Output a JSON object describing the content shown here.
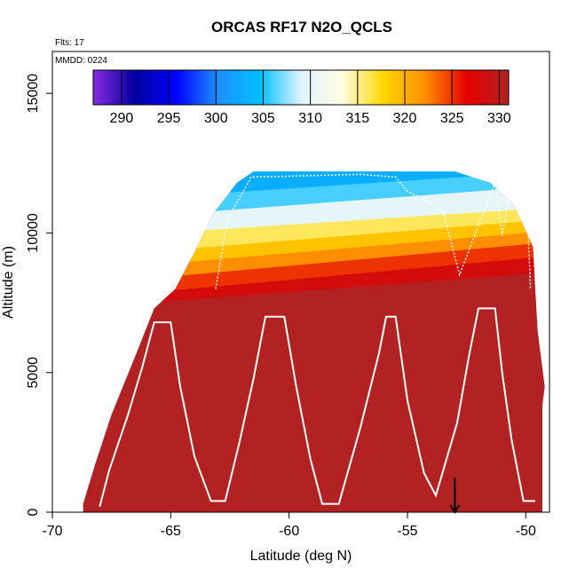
{
  "chart_data": {
    "type": "heatmap",
    "title": "ORCAS RF17 N2O_QCLS",
    "subtitle_flights": "Flts: 17",
    "subtitle_date": "MMDD: 0224",
    "xlabel": "Latitude (deg N)",
    "ylabel": "Altitude (m)",
    "xlim": [
      -70,
      -49
    ],
    "ylim": [
      0,
      16500
    ],
    "xticks": [
      -70,
      -65,
      -60,
      -55,
      -50
    ],
    "yticks": [
      0,
      5000,
      10000,
      15000
    ],
    "colorbar": {
      "min": 287,
      "max": 331,
      "ticks": [
        290,
        295,
        300,
        305,
        310,
        315,
        320,
        325,
        330
      ],
      "placement": "top-inside",
      "colors": [
        "#8a2be2",
        "#0000a0",
        "#0000ff",
        "#1e90ff",
        "#00bfff",
        "#dff3ff",
        "#fffde0",
        "#ffd700",
        "#ff8c00",
        "#e60000",
        "#b22222"
      ]
    },
    "domain_profile": [
      [
        -68.7,
        300
      ],
      [
        -68.2,
        1700
      ],
      [
        -67.5,
        3500
      ],
      [
        -66.4,
        5800
      ],
      [
        -65.7,
        7300
      ],
      [
        -64.8,
        8000
      ],
      [
        -64.0,
        9300
      ],
      [
        -63.2,
        10700
      ],
      [
        -62.2,
        11800
      ],
      [
        -61.5,
        12200
      ],
      [
        -53.9,
        12200
      ],
      [
        -53.0,
        12200
      ],
      [
        -51.5,
        11800
      ],
      [
        -50.5,
        11000
      ],
      [
        -49.7,
        9500
      ],
      [
        -49.5,
        6500
      ],
      [
        -49.2,
        4500
      ],
      [
        -49.3,
        3800
      ]
    ],
    "layers": [
      {
        "base_left": 11000,
        "base_right": 12300,
        "value": 303
      },
      {
        "base_left": 10300,
        "base_right": 11800,
        "value": 306
      },
      {
        "base_left": 9700,
        "base_right": 11000,
        "value": 310
      },
      {
        "base_left": 9000,
        "base_right": 10600,
        "value": 316
      },
      {
        "base_left": 8500,
        "base_right": 10200,
        "value": 319
      },
      {
        "base_left": 8000,
        "base_right": 9800,
        "value": 322
      },
      {
        "base_left": 7500,
        "base_right": 9300,
        "value": 325
      },
      {
        "base_left": 7200,
        "base_right": 8700,
        "value": 328
      },
      {
        "base_left": 0,
        "base_right": 0,
        "value": 331
      }
    ],
    "flight_track": [
      [
        -68.0,
        200
      ],
      [
        -67.6,
        1500
      ],
      [
        -66.8,
        3500
      ],
      [
        -66.2,
        5200
      ],
      [
        -65.7,
        6800
      ],
      [
        -65.0,
        6800
      ],
      [
        -64.6,
        4500
      ],
      [
        -64.0,
        2000
      ],
      [
        -63.3,
        400
      ],
      [
        -62.7,
        400
      ],
      [
        -62.1,
        2500
      ],
      [
        -61.5,
        4800
      ],
      [
        -61.0,
        7000
      ],
      [
        -60.2,
        7000
      ],
      [
        -59.7,
        4500
      ],
      [
        -59.1,
        1900
      ],
      [
        -58.6,
        300
      ],
      [
        -57.9,
        300
      ],
      [
        -57.0,
        3000
      ],
      [
        -56.2,
        5700
      ],
      [
        -55.9,
        7000
      ],
      [
        -55.5,
        7000
      ],
      [
        -55.0,
        4000
      ],
      [
        -54.3,
        1400
      ],
      [
        -53.8,
        600
      ],
      [
        -52.9,
        3200
      ],
      [
        -52.4,
        5600
      ],
      [
        -52.0,
        7300
      ],
      [
        -51.3,
        7300
      ],
      [
        -51.0,
        5000
      ],
      [
        -50.6,
        2600
      ],
      [
        -50.1,
        400
      ],
      [
        -49.6,
        400
      ]
    ],
    "upper_track": [
      [
        -63.1,
        8000
      ],
      [
        -62.6,
        10500
      ],
      [
        -61.6,
        12000
      ],
      [
        -57.0,
        12100
      ],
      [
        -55.5,
        12000
      ],
      [
        -55.0,
        11500
      ],
      [
        -53.5,
        10800
      ],
      [
        -52.8,
        8500
      ],
      [
        -51.3,
        11800
      ],
      [
        -51.0,
        9900
      ],
      [
        -50.6,
        11900
      ],
      [
        -49.9,
        10000
      ],
      [
        -49.8,
        8000
      ]
    ],
    "arrow_marker": {
      "x": -53.0,
      "y_top": 600,
      "y_bottom": 0
    }
  }
}
